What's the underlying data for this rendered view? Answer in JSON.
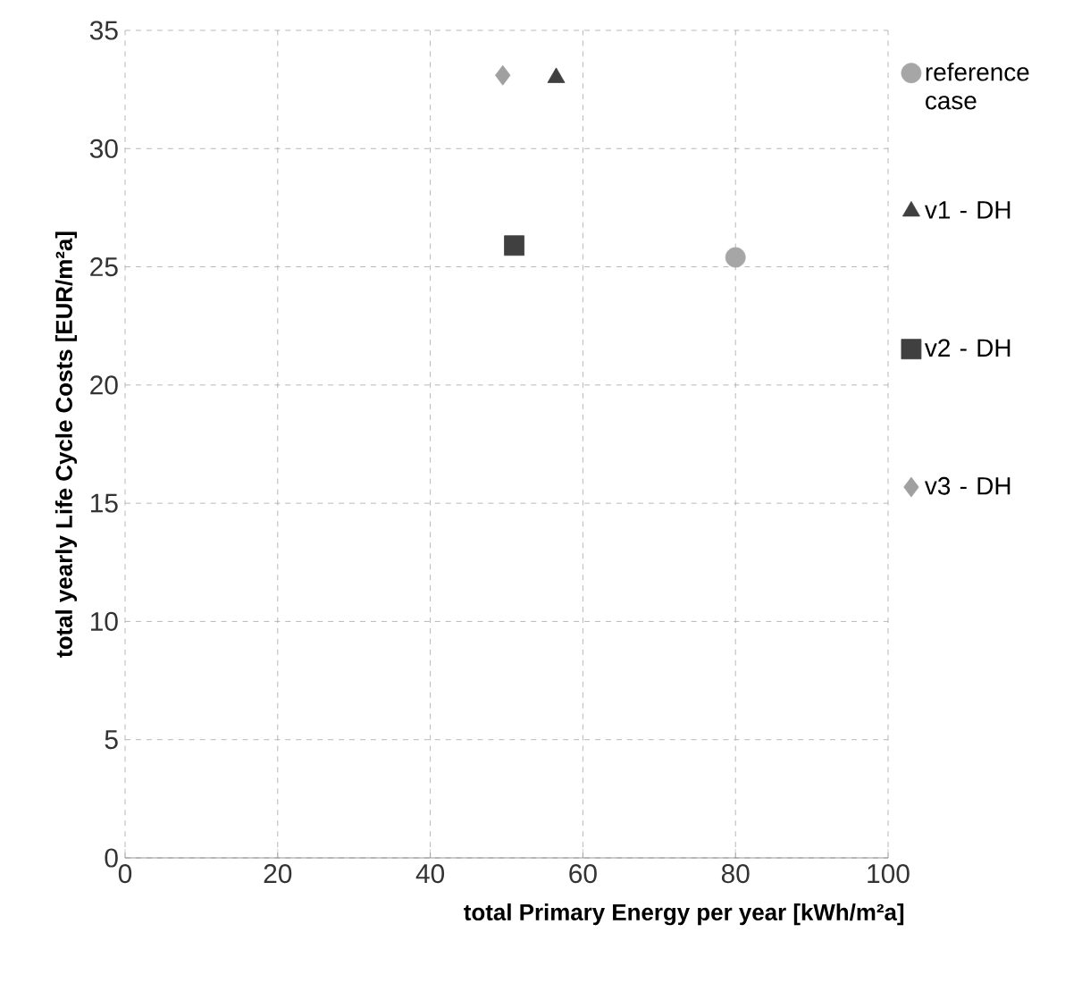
{
  "chart_data": {
    "type": "scatter",
    "xlabel": "total Primary Energy per year [kWh/m²a]",
    "ylabel": "total yearly Life Cycle Costs [EUR/m²a]",
    "xlim": [
      0,
      100
    ],
    "xticks": [
      0,
      20,
      40,
      60,
      80,
      100
    ],
    "ylim": [
      0,
      35
    ],
    "yticks": [
      0,
      5,
      10,
      15,
      20,
      25,
      30,
      35
    ],
    "grid": true,
    "legend": "right",
    "series": [
      {
        "name": "reference case",
        "color": "#a6a6a6",
        "marker": "circle",
        "x": [
          80
        ],
        "values": [
          25.4
        ]
      },
      {
        "name": "v1 - DH",
        "color": "#404040",
        "marker": "triangle",
        "x": [
          56.5
        ],
        "values": [
          33.0
        ]
      },
      {
        "name": "v2 - DH",
        "color": "#404040",
        "marker": "square",
        "x": [
          51
        ],
        "values": [
          25.9
        ]
      },
      {
        "name": "v3 - DH",
        "color": "#a0a0a0",
        "marker": "diamond",
        "x": [
          49.5
        ],
        "values": [
          33.1
        ]
      }
    ]
  }
}
